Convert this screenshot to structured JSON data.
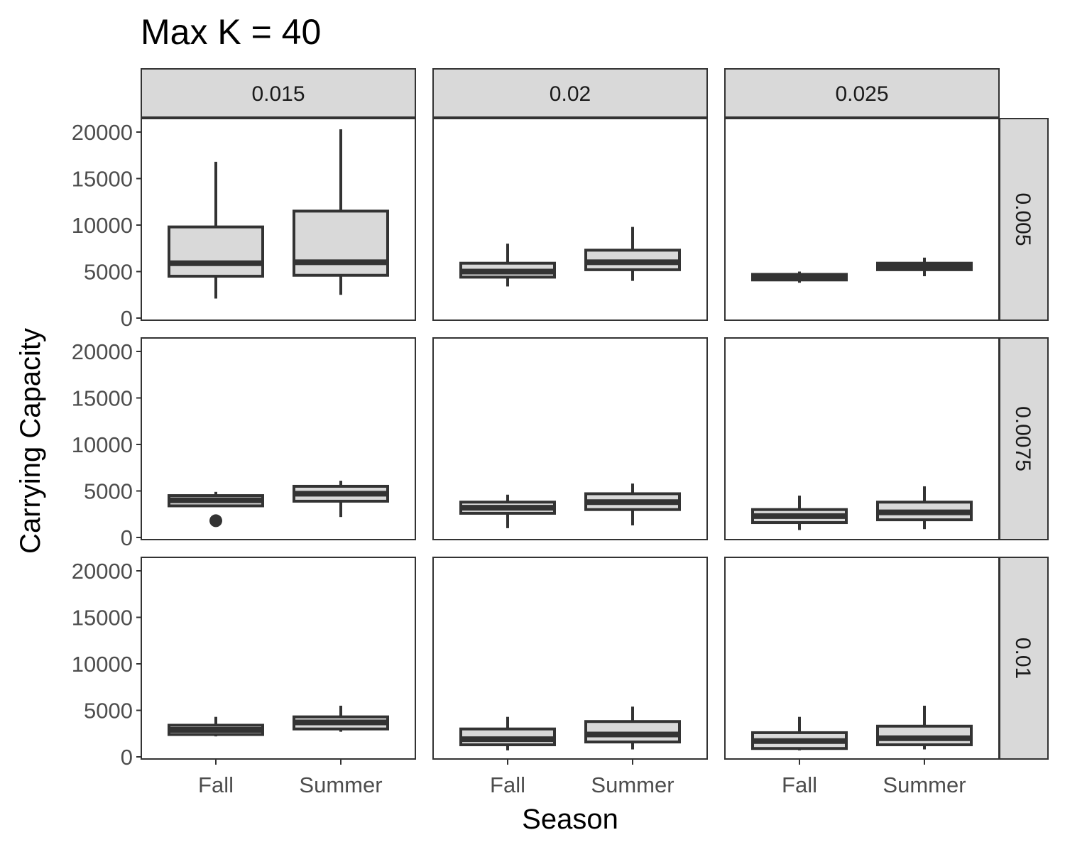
{
  "chart_data": {
    "type": "boxplot",
    "title": "Max K = 40",
    "xlabel": "Season",
    "ylabel": "Carrying Capacity",
    "ylim": [
      0,
      21000
    ],
    "yticks": [
      0,
      5000,
      10000,
      15000,
      20000
    ],
    "categories": [
      "Fall",
      "Summer"
    ],
    "column_facets": [
      "0.015",
      "0.02",
      "0.025"
    ],
    "row_facets": [
      "0.005",
      "0.0075",
      "0.01"
    ],
    "colors": {
      "box_fill": "#d9d9d9",
      "box_stroke": "#333333",
      "strip_fill": "#d9d9d9",
      "panel_border": "#333333",
      "tick_text": "#4d4d4d"
    },
    "panels": [
      {
        "col": "0.015",
        "row": "0.005",
        "boxes": [
          {
            "category": "Fall",
            "min": 2100,
            "q1": 4500,
            "median": 5900,
            "q3": 9800,
            "max": 16800,
            "outliers": []
          },
          {
            "category": "Summer",
            "min": 2500,
            "q1": 4600,
            "median": 6000,
            "q3": 11500,
            "max": 20300,
            "outliers": []
          }
        ]
      },
      {
        "col": "0.02",
        "row": "0.005",
        "boxes": [
          {
            "category": "Fall",
            "min": 3400,
            "q1": 4400,
            "median": 5000,
            "q3": 5900,
            "max": 8000,
            "outliers": []
          },
          {
            "category": "Summer",
            "min": 4000,
            "q1": 5200,
            "median": 6000,
            "q3": 7300,
            "max": 9800,
            "outliers": []
          }
        ]
      },
      {
        "col": "0.025",
        "row": "0.005",
        "boxes": [
          {
            "category": "Fall",
            "min": 3800,
            "q1": 4100,
            "median": 4400,
            "q3": 4700,
            "max": 5000,
            "outliers": []
          },
          {
            "category": "Summer",
            "min": 4500,
            "q1": 5200,
            "median": 5500,
            "q3": 5900,
            "max": 6500,
            "outliers": []
          }
        ]
      },
      {
        "col": "0.015",
        "row": "0.0075",
        "boxes": [
          {
            "category": "Fall",
            "min": 3300,
            "q1": 3400,
            "median": 4000,
            "q3": 4500,
            "max": 4900,
            "outliers": [
              1800
            ]
          },
          {
            "category": "Summer",
            "min": 2200,
            "q1": 3900,
            "median": 4700,
            "q3": 5500,
            "max": 6100,
            "outliers": []
          }
        ]
      },
      {
        "col": "0.02",
        "row": "0.0075",
        "boxes": [
          {
            "category": "Fall",
            "min": 1000,
            "q1": 2600,
            "median": 3200,
            "q3": 3800,
            "max": 4600,
            "outliers": []
          },
          {
            "category": "Summer",
            "min": 1300,
            "q1": 3000,
            "median": 3800,
            "q3": 4700,
            "max": 5800,
            "outliers": []
          }
        ]
      },
      {
        "col": "0.025",
        "row": "0.0075",
        "boxes": [
          {
            "category": "Fall",
            "min": 800,
            "q1": 1600,
            "median": 2300,
            "q3": 3000,
            "max": 4500,
            "outliers": []
          },
          {
            "category": "Summer",
            "min": 900,
            "q1": 1900,
            "median": 2700,
            "q3": 3800,
            "max": 5500,
            "outliers": []
          }
        ]
      },
      {
        "col": "0.015",
        "row": "0.01",
        "boxes": [
          {
            "category": "Fall",
            "min": 2200,
            "q1": 2400,
            "median": 2900,
            "q3": 3400,
            "max": 4300,
            "outliers": []
          },
          {
            "category": "Summer",
            "min": 2700,
            "q1": 3000,
            "median": 3700,
            "q3": 4300,
            "max": 5500,
            "outliers": []
          }
        ]
      },
      {
        "col": "0.02",
        "row": "0.01",
        "boxes": [
          {
            "category": "Fall",
            "min": 700,
            "q1": 1300,
            "median": 1900,
            "q3": 3000,
            "max": 4300,
            "outliers": []
          },
          {
            "category": "Summer",
            "min": 800,
            "q1": 1600,
            "median": 2400,
            "q3": 3800,
            "max": 5400,
            "outliers": []
          }
        ]
      },
      {
        "col": "0.025",
        "row": "0.01",
        "boxes": [
          {
            "category": "Fall",
            "min": 700,
            "q1": 900,
            "median": 1700,
            "q3": 2600,
            "max": 4300,
            "outliers": []
          },
          {
            "category": "Summer",
            "min": 800,
            "q1": 1300,
            "median": 2000,
            "q3": 3300,
            "max": 5500,
            "outliers": []
          }
        ]
      }
    ]
  }
}
